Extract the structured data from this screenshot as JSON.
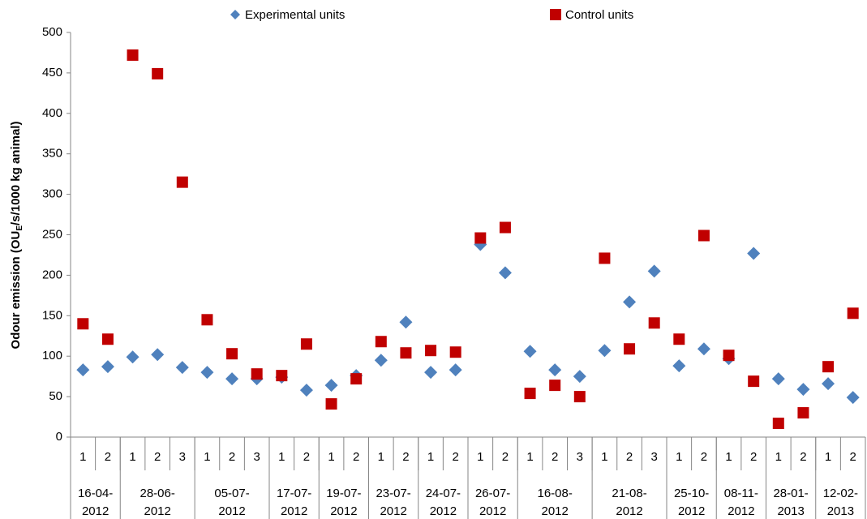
{
  "chart_data": {
    "type": "scatter",
    "ylabel": [
      "Odour emission (OU",
      "E",
      "/s/1000 kg animal)"
    ],
    "categories": [
      "1",
      "2",
      "1",
      "2",
      "3",
      "1",
      "2",
      "3",
      "1",
      "2",
      "1",
      "2",
      "1",
      "2",
      "1",
      "2",
      "1",
      "2",
      "1",
      "2",
      "3",
      "1",
      "2",
      "3",
      "1",
      "2",
      "1",
      "2",
      "1",
      "2",
      "1",
      "2"
    ],
    "groups": [
      {
        "label": "16-04-2012",
        "size": 2
      },
      {
        "label": "28-06-2012",
        "size": 3
      },
      {
        "label": "05-07-2012",
        "size": 3
      },
      {
        "label": "17-07-2012",
        "size": 2
      },
      {
        "label": "19-07-2012",
        "size": 2
      },
      {
        "label": "23-07-2012",
        "size": 2
      },
      {
        "label": "24-07-2012",
        "size": 2
      },
      {
        "label": "26-07-2012",
        "size": 2
      },
      {
        "label": "16-08-2012",
        "size": 3
      },
      {
        "label": "21-08-2012",
        "size": 3
      },
      {
        "label": "25-10-2012",
        "size": 2
      },
      {
        "label": "08-11-2012",
        "size": 2
      },
      {
        "label": "28-01-2013",
        "size": 2
      },
      {
        "label": "12-02-2013",
        "size": 2
      }
    ],
    "series": [
      {
        "name": "Experimental units",
        "color": "#4f81bd",
        "marker": "diamond",
        "values": [
          83,
          87,
          99,
          102,
          86,
          80,
          72,
          72,
          74,
          58,
          64,
          76,
          95,
          142,
          80,
          83,
          238,
          203,
          106,
          83,
          75,
          107,
          167,
          205,
          88,
          109,
          97,
          227,
          72,
          59,
          66,
          49
        ]
      },
      {
        "name": "Control units",
        "color": "#c00000",
        "marker": "square",
        "values": [
          140,
          121,
          472,
          449,
          315,
          145,
          103,
          78,
          76,
          115,
          41,
          72,
          118,
          104,
          107,
          105,
          246,
          259,
          54,
          64,
          50,
          221,
          109,
          141,
          121,
          249,
          101,
          69,
          17,
          30,
          87,
          153
        ]
      }
    ],
    "ylim": [
      0,
      500
    ],
    "yticks": [
      0,
      50,
      100,
      150,
      200,
      250,
      300,
      350,
      400,
      450,
      500
    ]
  }
}
